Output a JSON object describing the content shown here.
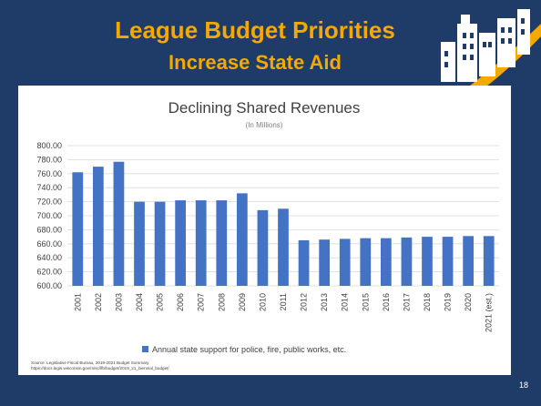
{
  "slide": {
    "title": "League Budget Priorities",
    "subtitle": "Increase State Aid",
    "slide_number": "18",
    "source_line1": "Source: Legislative Fiscal Bureau, 2019-2021 Budget Summary",
    "source_line2": "https://docs.legis.wisconsin.gov/misc/lfb/budget/2019_21_biennial_budget/",
    "colors": {
      "background": "#1f3c69",
      "title": "#f5a800",
      "bar": "#4472c4"
    },
    "logo_icon": "city-skyline-logo-icon"
  },
  "chart_data": {
    "type": "bar",
    "title": "Declining Shared Revenues",
    "subtitle": "(In Millions)",
    "categories": [
      "2001",
      "2002",
      "2003",
      "2004",
      "2005",
      "2006",
      "2007",
      "2008",
      "2009",
      "2010",
      "2011",
      "2012",
      "2013",
      "2014",
      "2015",
      "2016",
      "2017",
      "2018",
      "2019",
      "2020",
      "2021 (est.)"
    ],
    "series": [
      {
        "name": "Annual state support for police, fire, public works, etc.",
        "values": [
          762,
          770,
          777,
          720,
          720,
          722,
          722,
          722,
          732,
          708,
          710,
          665,
          666,
          667,
          668,
          668,
          669,
          670,
          670,
          671,
          671
        ]
      }
    ],
    "ylim": [
      600,
      800
    ],
    "yticks": [
      "600.00",
      "620.00",
      "640.00",
      "660.00",
      "680.00",
      "700.00",
      "720.00",
      "740.00",
      "760.00",
      "780.00",
      "800.00"
    ],
    "grid": true,
    "legend": "bottom"
  }
}
